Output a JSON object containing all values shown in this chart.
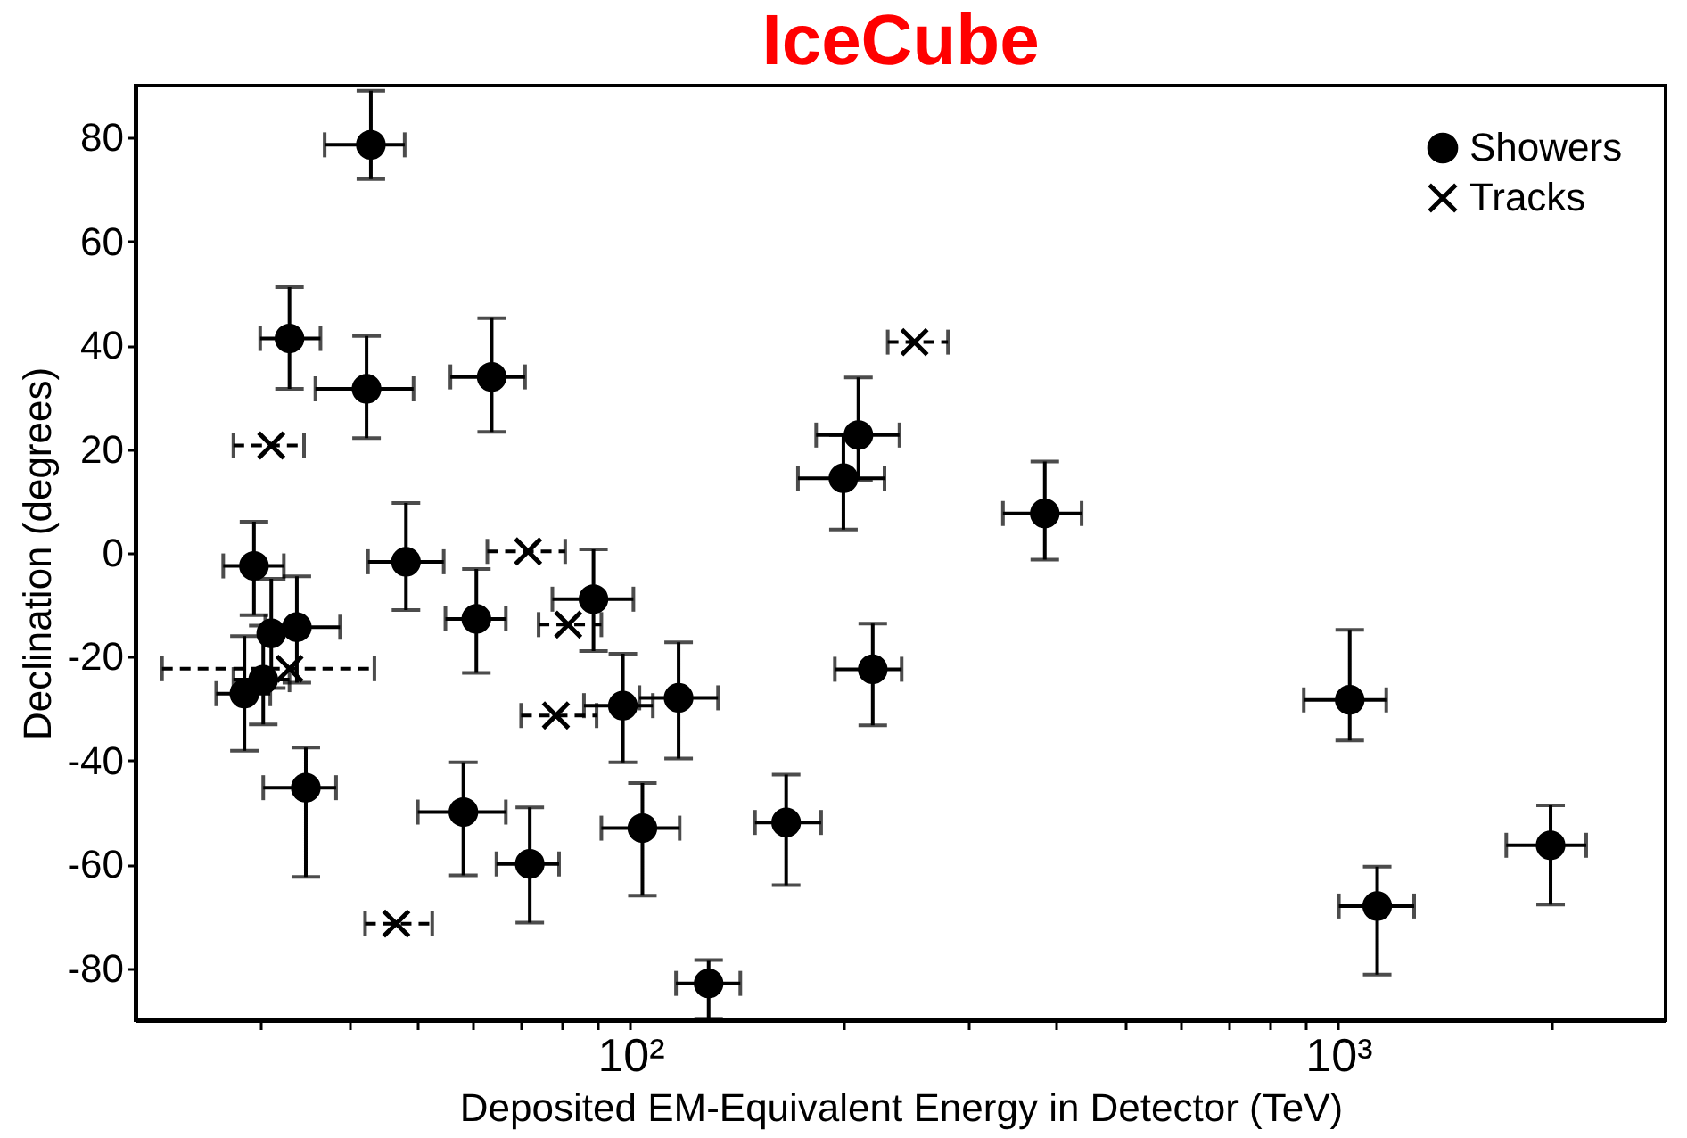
{
  "chart_data": {
    "type": "scatter",
    "title": "IceCube",
    "xlabel": "Deposited EM-Equivalent Energy in Detector (TeV)",
    "ylabel": "Declination (degrees)",
    "log": "x",
    "xlim": [
      20,
      2900
    ],
    "ylim": [
      -90,
      90
    ],
    "xticks": [
      {
        "value": 30,
        "label": null
      },
      {
        "value": 40,
        "label": null
      },
      {
        "value": 50,
        "label": null
      },
      {
        "value": 60,
        "label": null
      },
      {
        "value": 70,
        "label": null
      },
      {
        "value": 80,
        "label": null
      },
      {
        "value": 90,
        "label": null
      },
      {
        "value": 100,
        "label": "10²"
      },
      {
        "value": 200,
        "label": null
      },
      {
        "value": 300,
        "label": null
      },
      {
        "value": 400,
        "label": null
      },
      {
        "value": 500,
        "label": null
      },
      {
        "value": 600,
        "label": null
      },
      {
        "value": 700,
        "label": null
      },
      {
        "value": 800,
        "label": null
      },
      {
        "value": 900,
        "label": null
      },
      {
        "value": 1000,
        "label": "10³"
      },
      {
        "value": 2000,
        "label": null
      }
    ],
    "yticks": [
      -80,
      -60,
      -40,
      -20,
      0,
      20,
      40,
      60,
      80
    ],
    "grid": false,
    "legend": "top right",
    "series": [
      {
        "name": "Showers",
        "color": "#000000",
        "marker": "circle",
        "line_style": "solid",
        "x": [
          43,
          33,
          42.4,
          63.7,
          29.4,
          48.2,
          60.6,
          88.7,
          97.6,
          117,
          34.8,
          58.1,
          72.1,
          104,
          129,
          28.5,
          30.3,
          31.1,
          33.8,
          210,
          200,
          385,
          220,
          166,
          1038,
          1135,
          1995
        ],
        "values": [
          78.6,
          41.3,
          31.6,
          33.9,
          -2.5,
          -1.7,
          -12.7,
          -8.9,
          -29.4,
          -27.9,
          -45.2,
          -49.9,
          -59.9,
          -53,
          -82.9,
          -27.1,
          -24.4,
          -15.5,
          -14.3,
          22.7,
          14.4,
          7.6,
          -22.4,
          -51.9,
          -28.3,
          -68,
          -56.3
        ],
        "xerrors": [
          [
            37,
            48
          ],
          [
            30,
            36.5
          ],
          [
            35.9,
            49.4
          ],
          [
            55.7,
            71
          ],
          [
            26.6,
            32.4
          ],
          [
            42.6,
            54.5
          ],
          [
            54.8,
            66.7
          ],
          [
            77.6,
            101
          ],
          [
            86,
            107.6
          ],
          [
            103,
            133
          ],
          [
            30.3,
            38.4
          ],
          [
            50.1,
            66.7
          ],
          [
            64.7,
            79.3
          ],
          [
            91,
            117.4
          ],
          [
            116,
            143
          ],
          [
            26,
            31
          ],
          [
            27.5,
            33
          ],
          null,
          [
            30.5,
            38.9
          ],
          [
            183,
            240
          ],
          [
            172.5,
            228.6
          ],
          [
            336,
            434
          ],
          [
            194.5,
            241.7
          ],
          [
            150,
            186
          ],
          [
            894,
            1169
          ],
          [
            1002,
            1280
          ],
          [
            1727,
            2240
          ]
        ],
        "errors": [
          [
            72,
            89
          ],
          [
            31.6,
            51.2
          ],
          [
            22.1,
            41.8
          ],
          [
            23.3,
            45.2
          ],
          [
            -12,
            6
          ],
          [
            -11,
            9.6
          ],
          [
            -23.1,
            -3.1
          ],
          [
            -18.9,
            0.7
          ],
          [
            -40.3,
            -19.4
          ],
          [
            -39.6,
            -17.2
          ],
          [
            -62.4,
            -37.5
          ],
          [
            -62.1,
            -40.3
          ],
          [
            -71.2,
            -49
          ],
          [
            -66,
            -44.3
          ],
          [
            -89.7,
            -78.4
          ],
          [
            -38.1,
            -16
          ],
          [
            -33,
            -14
          ],
          [
            -26,
            -5
          ],
          [
            -25,
            -4.5
          ],
          [
            14,
            33.8
          ],
          [
            4.5,
            22.7
          ],
          [
            -1.3,
            17.6
          ],
          [
            -33.2,
            -13.6
          ],
          [
            -64,
            -42.7
          ],
          [
            -36.1,
            -14.8
          ],
          [
            -81.2,
            -60.4
          ],
          [
            -67.7,
            -48.6
          ]
        ]
      },
      {
        "name": "Tracks",
        "color": "#000000",
        "marker": "cross",
        "line_style": "dashed",
        "x": [
          31.1,
          71.7,
          81.7,
          78.5,
          46.7,
          252,
          33
        ],
        "values": [
          20.7,
          0.3,
          -13.8,
          -31.3,
          -71.4,
          40.6,
          -22.3
        ],
        "xerrors": [
          [
            27.5,
            34.6
          ],
          [
            62.8,
            80.9
          ],
          [
            74.2,
            91
          ],
          [
            70.1,
            89.6
          ],
          [
            42.2,
            52.5
          ],
          [
            231,
            281
          ],
          [
            21.8,
            43.5
          ]
        ]
      }
    ]
  }
}
